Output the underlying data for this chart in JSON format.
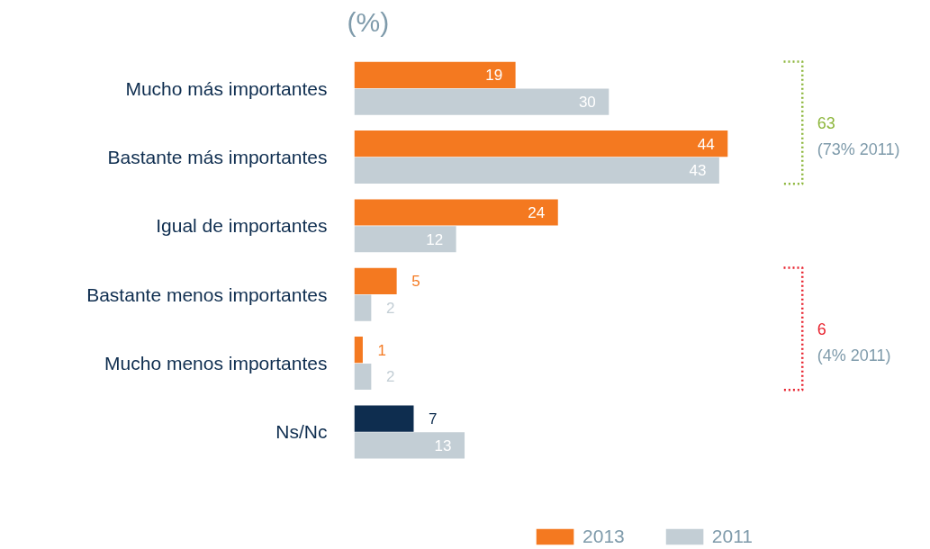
{
  "chart_data": {
    "type": "bar",
    "orientation": "horizontal",
    "title": "(%)",
    "categories": [
      "Mucho más importantes",
      "Bastante más importantes",
      "Igual de importantes",
      "Bastante menos importantes",
      "Mucho menos importantes",
      "Ns/Nc"
    ],
    "series": [
      {
        "name": "2013",
        "color": "#f47920",
        "colors": [
          "#f47920",
          "#f47920",
          "#f47920",
          "#f47920",
          "#f47920",
          "#0e2d4f"
        ],
        "values": [
          19,
          44,
          24,
          5,
          1,
          7
        ]
      },
      {
        "name": "2011",
        "color": "#c3ced5",
        "values": [
          30,
          43,
          12,
          2,
          2,
          13
        ]
      }
    ],
    "data_labels": true,
    "legend": "bottom",
    "grid": false,
    "annotations": [
      "63",
      "(73% 2011)",
      "6",
      "(4% 2011)"
    ]
  }
}
